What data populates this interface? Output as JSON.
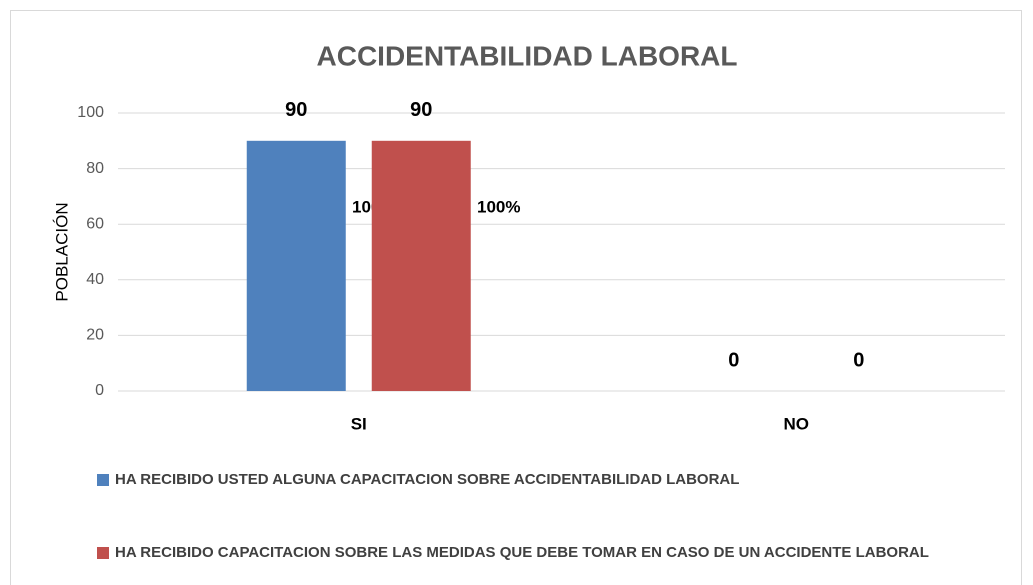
{
  "chart_data": {
    "type": "bar",
    "title": "ACCIDENTABILIDAD LABORAL",
    "y_label": "POBLACIÓN",
    "categories": [
      "SI",
      "NO"
    ],
    "series": [
      {
        "name": "HA RECIBIDO USTED ALGUNA CAPACITACION SOBRE ACCIDENTABILIDAD LABORAL",
        "color": "#4f81bd",
        "values": [
          90,
          0
        ],
        "percent_labels": [
          "100%",
          null
        ]
      },
      {
        "name": "HA RECIBIDO CAPACITACION SOBRE LAS MEDIDAS QUE DEBE TOMAR EN CASO DE UN ACCIDENTE LABORAL",
        "color": "#c0504d",
        "values": [
          90,
          0
        ],
        "percent_labels": [
          "100%",
          null
        ]
      }
    ],
    "ylim": [
      0,
      100
    ],
    "yticks": [
      0,
      20,
      40,
      60,
      80,
      100
    ],
    "grid": true,
    "legend": "bottom"
  }
}
